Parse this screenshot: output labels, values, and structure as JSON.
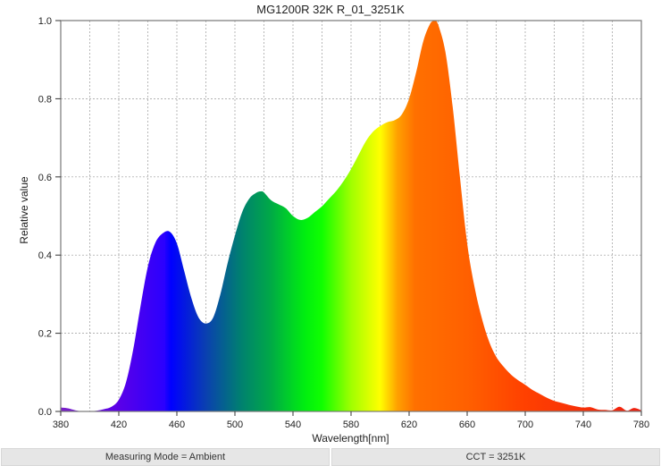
{
  "chart_data": {
    "type": "area",
    "title": "MG1200R 32K R_01_3251K",
    "xlabel": "Wavelength[nm]",
    "ylabel": "Relative value",
    "xlim": [
      380,
      780
    ],
    "ylim": [
      0.0,
      1.0
    ],
    "x_ticks": [
      "380",
      "420",
      "460",
      "500",
      "540",
      "580",
      "620",
      "660",
      "700",
      "740",
      "780"
    ],
    "y_ticks": [
      "0.0",
      "0.2",
      "0.4",
      "0.6",
      "0.8",
      "1.0"
    ],
    "grid": true,
    "fill": "spectral gradient (violet-blue-green-yellow-orange-red)",
    "x": [
      380,
      385,
      390,
      395,
      400,
      405,
      410,
      415,
      420,
      425,
      430,
      435,
      440,
      445,
      450,
      455,
      460,
      465,
      470,
      475,
      480,
      485,
      490,
      495,
      500,
      505,
      510,
      515,
      518,
      520,
      525,
      530,
      535,
      540,
      545,
      550,
      555,
      560,
      565,
      570,
      575,
      580,
      585,
      590,
      595,
      600,
      605,
      610,
      615,
      620,
      625,
      630,
      635,
      638,
      640,
      645,
      650,
      655,
      660,
      665,
      670,
      675,
      680,
      685,
      690,
      695,
      700,
      705,
      710,
      715,
      720,
      725,
      730,
      735,
      740,
      745,
      750,
      755,
      760,
      765,
      770,
      775,
      780
    ],
    "values": [
      0.01,
      0.008,
      0.003,
      0.0,
      0.0,
      0.002,
      0.006,
      0.012,
      0.03,
      0.075,
      0.16,
      0.27,
      0.37,
      0.43,
      0.455,
      0.46,
      0.43,
      0.36,
      0.29,
      0.24,
      0.225,
      0.24,
      0.3,
      0.38,
      0.45,
      0.51,
      0.545,
      0.56,
      0.563,
      0.56,
      0.54,
      0.53,
      0.52,
      0.5,
      0.49,
      0.495,
      0.51,
      0.525,
      0.545,
      0.565,
      0.59,
      0.62,
      0.655,
      0.69,
      0.715,
      0.73,
      0.74,
      0.745,
      0.76,
      0.8,
      0.87,
      0.95,
      0.995,
      1.0,
      0.99,
      0.92,
      0.78,
      0.6,
      0.43,
      0.32,
      0.24,
      0.18,
      0.14,
      0.115,
      0.095,
      0.08,
      0.068,
      0.055,
      0.045,
      0.035,
      0.027,
      0.022,
      0.017,
      0.013,
      0.01,
      0.011,
      0.005,
      0.004,
      0.003,
      0.012,
      0.002,
      0.009,
      0.003
    ]
  },
  "footer": {
    "measuring_mode": "Measuring Mode = Ambient",
    "cct": "CCT = 3251K"
  }
}
